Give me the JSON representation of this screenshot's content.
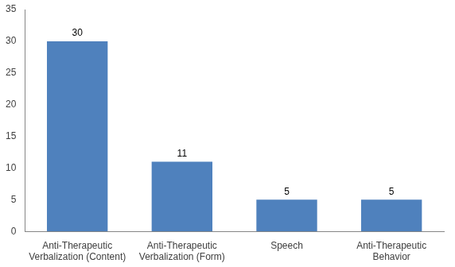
{
  "chart_data": {
    "type": "bar",
    "categories": [
      "Anti-Therapeutic Verbalization (Content)",
      "Anti-Therapeutic Verbalization (Form)",
      "Speech",
      "Anti-Therapeutic Behavior"
    ],
    "values": [
      30,
      11,
      5,
      5
    ],
    "color": "#4f81bd",
    "ylim": [
      0,
      35
    ],
    "yticks": [
      0,
      5,
      10,
      15,
      20,
      25,
      30,
      35
    ],
    "grid": false,
    "data_labels": true
  }
}
